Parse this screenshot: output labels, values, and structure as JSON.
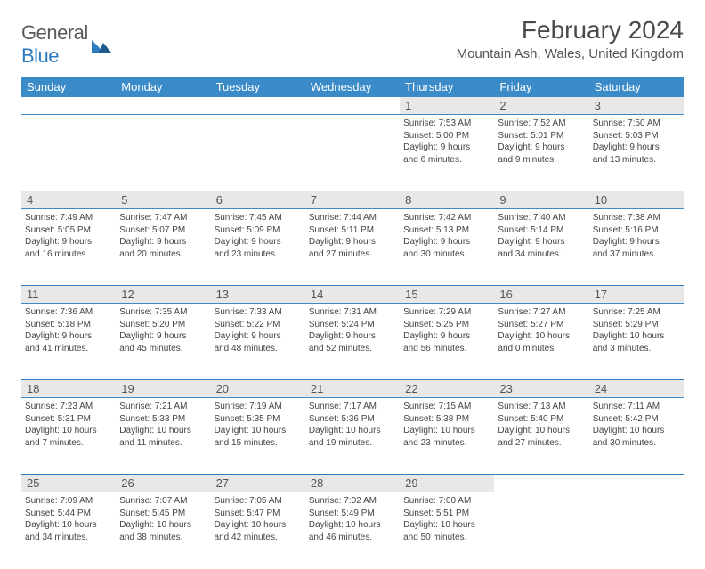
{
  "logo": {
    "general": "General",
    "blue": "Blue"
  },
  "title": "February 2024",
  "location": "Mountain Ash, Wales, United Kingdom",
  "colors": {
    "header_bg": "#3b8bc9",
    "daynum_bg": "#e8e8e8",
    "rule": "#2f7bbf",
    "text": "#444444"
  },
  "weekdays": [
    "Sunday",
    "Monday",
    "Tuesday",
    "Wednesday",
    "Thursday",
    "Friday",
    "Saturday"
  ],
  "weeks": [
    [
      null,
      null,
      null,
      null,
      {
        "n": "1",
        "sunrise": "Sunrise: 7:53 AM",
        "sunset": "Sunset: 5:00 PM",
        "day1": "Daylight: 9 hours",
        "day2": "and 6 minutes."
      },
      {
        "n": "2",
        "sunrise": "Sunrise: 7:52 AM",
        "sunset": "Sunset: 5:01 PM",
        "day1": "Daylight: 9 hours",
        "day2": "and 9 minutes."
      },
      {
        "n": "3",
        "sunrise": "Sunrise: 7:50 AM",
        "sunset": "Sunset: 5:03 PM",
        "day1": "Daylight: 9 hours",
        "day2": "and 13 minutes."
      }
    ],
    [
      {
        "n": "4",
        "sunrise": "Sunrise: 7:49 AM",
        "sunset": "Sunset: 5:05 PM",
        "day1": "Daylight: 9 hours",
        "day2": "and 16 minutes."
      },
      {
        "n": "5",
        "sunrise": "Sunrise: 7:47 AM",
        "sunset": "Sunset: 5:07 PM",
        "day1": "Daylight: 9 hours",
        "day2": "and 20 minutes."
      },
      {
        "n": "6",
        "sunrise": "Sunrise: 7:45 AM",
        "sunset": "Sunset: 5:09 PM",
        "day1": "Daylight: 9 hours",
        "day2": "and 23 minutes."
      },
      {
        "n": "7",
        "sunrise": "Sunrise: 7:44 AM",
        "sunset": "Sunset: 5:11 PM",
        "day1": "Daylight: 9 hours",
        "day2": "and 27 minutes."
      },
      {
        "n": "8",
        "sunrise": "Sunrise: 7:42 AM",
        "sunset": "Sunset: 5:13 PM",
        "day1": "Daylight: 9 hours",
        "day2": "and 30 minutes."
      },
      {
        "n": "9",
        "sunrise": "Sunrise: 7:40 AM",
        "sunset": "Sunset: 5:14 PM",
        "day1": "Daylight: 9 hours",
        "day2": "and 34 minutes."
      },
      {
        "n": "10",
        "sunrise": "Sunrise: 7:38 AM",
        "sunset": "Sunset: 5:16 PM",
        "day1": "Daylight: 9 hours",
        "day2": "and 37 minutes."
      }
    ],
    [
      {
        "n": "11",
        "sunrise": "Sunrise: 7:36 AM",
        "sunset": "Sunset: 5:18 PM",
        "day1": "Daylight: 9 hours",
        "day2": "and 41 minutes."
      },
      {
        "n": "12",
        "sunrise": "Sunrise: 7:35 AM",
        "sunset": "Sunset: 5:20 PM",
        "day1": "Daylight: 9 hours",
        "day2": "and 45 minutes."
      },
      {
        "n": "13",
        "sunrise": "Sunrise: 7:33 AM",
        "sunset": "Sunset: 5:22 PM",
        "day1": "Daylight: 9 hours",
        "day2": "and 48 minutes."
      },
      {
        "n": "14",
        "sunrise": "Sunrise: 7:31 AM",
        "sunset": "Sunset: 5:24 PM",
        "day1": "Daylight: 9 hours",
        "day2": "and 52 minutes."
      },
      {
        "n": "15",
        "sunrise": "Sunrise: 7:29 AM",
        "sunset": "Sunset: 5:25 PM",
        "day1": "Daylight: 9 hours",
        "day2": "and 56 minutes."
      },
      {
        "n": "16",
        "sunrise": "Sunrise: 7:27 AM",
        "sunset": "Sunset: 5:27 PM",
        "day1": "Daylight: 10 hours",
        "day2": "and 0 minutes."
      },
      {
        "n": "17",
        "sunrise": "Sunrise: 7:25 AM",
        "sunset": "Sunset: 5:29 PM",
        "day1": "Daylight: 10 hours",
        "day2": "and 3 minutes."
      }
    ],
    [
      {
        "n": "18",
        "sunrise": "Sunrise: 7:23 AM",
        "sunset": "Sunset: 5:31 PM",
        "day1": "Daylight: 10 hours",
        "day2": "and 7 minutes."
      },
      {
        "n": "19",
        "sunrise": "Sunrise: 7:21 AM",
        "sunset": "Sunset: 5:33 PM",
        "day1": "Daylight: 10 hours",
        "day2": "and 11 minutes."
      },
      {
        "n": "20",
        "sunrise": "Sunrise: 7:19 AM",
        "sunset": "Sunset: 5:35 PM",
        "day1": "Daylight: 10 hours",
        "day2": "and 15 minutes."
      },
      {
        "n": "21",
        "sunrise": "Sunrise: 7:17 AM",
        "sunset": "Sunset: 5:36 PM",
        "day1": "Daylight: 10 hours",
        "day2": "and 19 minutes."
      },
      {
        "n": "22",
        "sunrise": "Sunrise: 7:15 AM",
        "sunset": "Sunset: 5:38 PM",
        "day1": "Daylight: 10 hours",
        "day2": "and 23 minutes."
      },
      {
        "n": "23",
        "sunrise": "Sunrise: 7:13 AM",
        "sunset": "Sunset: 5:40 PM",
        "day1": "Daylight: 10 hours",
        "day2": "and 27 minutes."
      },
      {
        "n": "24",
        "sunrise": "Sunrise: 7:11 AM",
        "sunset": "Sunset: 5:42 PM",
        "day1": "Daylight: 10 hours",
        "day2": "and 30 minutes."
      }
    ],
    [
      {
        "n": "25",
        "sunrise": "Sunrise: 7:09 AM",
        "sunset": "Sunset: 5:44 PM",
        "day1": "Daylight: 10 hours",
        "day2": "and 34 minutes."
      },
      {
        "n": "26",
        "sunrise": "Sunrise: 7:07 AM",
        "sunset": "Sunset: 5:45 PM",
        "day1": "Daylight: 10 hours",
        "day2": "and 38 minutes."
      },
      {
        "n": "27",
        "sunrise": "Sunrise: 7:05 AM",
        "sunset": "Sunset: 5:47 PM",
        "day1": "Daylight: 10 hours",
        "day2": "and 42 minutes."
      },
      {
        "n": "28",
        "sunrise": "Sunrise: 7:02 AM",
        "sunset": "Sunset: 5:49 PM",
        "day1": "Daylight: 10 hours",
        "day2": "and 46 minutes."
      },
      {
        "n": "29",
        "sunrise": "Sunrise: 7:00 AM",
        "sunset": "Sunset: 5:51 PM",
        "day1": "Daylight: 10 hours",
        "day2": "and 50 minutes."
      },
      null,
      null
    ]
  ]
}
